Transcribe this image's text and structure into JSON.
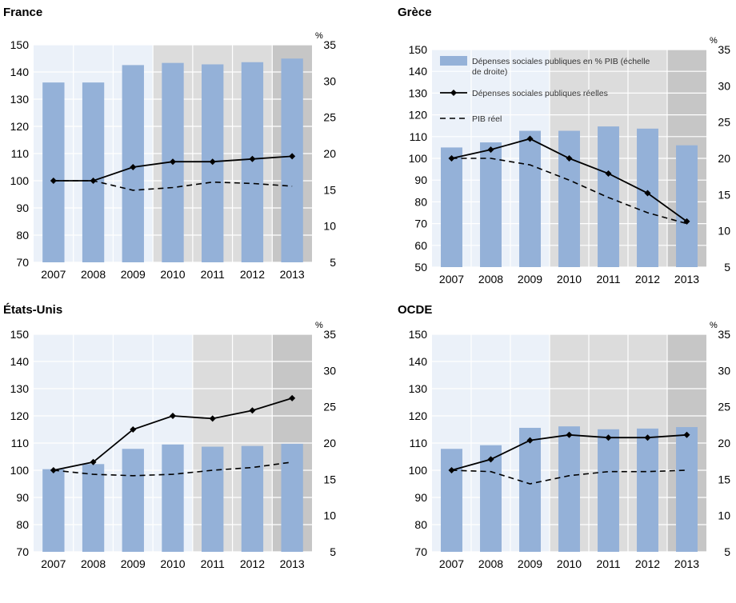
{
  "colors": {
    "bar": "#94b1d8",
    "panel_light": "#ebf1f9",
    "panel_mid": "#dcdcdc",
    "panel_dark": "#c6c6c6",
    "line": "#000000",
    "grid": "#ffffff"
  },
  "chart_data": [
    {
      "type": "bar",
      "title": "France",
      "categories": [
        "2007",
        "2008",
        "2009",
        "2010",
        "2011",
        "2012",
        "2013"
      ],
      "right_axis_unit": "%",
      "left_ylim": [
        70,
        150
      ],
      "left_ticks": [
        70,
        80,
        90,
        100,
        110,
        120,
        130,
        140,
        150
      ],
      "right_ylim": [
        5,
        35
      ],
      "right_ticks": [
        5,
        10,
        15,
        20,
        25,
        30,
        35
      ],
      "series": [
        {
          "kind": "bar",
          "axis": "right",
          "values": [
            29.8,
            29.8,
            32.2,
            32.5,
            32.3,
            32.6,
            33.1
          ]
        },
        {
          "kind": "line",
          "axis": "left",
          "values": [
            100,
            100,
            105,
            107,
            107,
            108,
            109
          ]
        },
        {
          "kind": "dashed",
          "axis": "left",
          "values": [
            100,
            100,
            96.5,
            97.5,
            99.5,
            99,
            98
          ]
        }
      ],
      "shade": [
        "light",
        "light",
        "light",
        "mid",
        "mid",
        "mid",
        "dark"
      ],
      "legend": null
    },
    {
      "type": "bar",
      "title": "Grèce",
      "categories": [
        "2007",
        "2008",
        "2009",
        "2010",
        "2011",
        "2012",
        "2013"
      ],
      "right_axis_unit": "%",
      "left_ylim": [
        50,
        150
      ],
      "left_ticks": [
        50,
        60,
        70,
        80,
        90,
        100,
        110,
        120,
        130,
        140,
        150
      ],
      "right_ylim": [
        5,
        35
      ],
      "right_ticks": [
        5,
        10,
        15,
        20,
        25,
        30,
        35
      ],
      "series": [
        {
          "kind": "bar",
          "axis": "right",
          "name": "Dépenses sociales publiques en % PIB (échelle de droite)",
          "values": [
            21.5,
            22.2,
            23.8,
            23.8,
            24.4,
            24.1,
            21.8
          ]
        },
        {
          "kind": "line",
          "axis": "left",
          "name": "Dépenses sociales publiques réelles",
          "values": [
            100,
            104,
            109,
            100,
            93,
            84,
            71
          ]
        },
        {
          "kind": "dashed",
          "axis": "left",
          "name": "PIB réel",
          "values": [
            100,
            100,
            97,
            90,
            82,
            75,
            70
          ]
        }
      ],
      "shade": [
        "light",
        "light",
        "light",
        "mid",
        "mid",
        "mid",
        "dark"
      ],
      "legend": "top-left"
    },
    {
      "type": "bar",
      "title": "États-Unis",
      "categories": [
        "2007",
        "2008",
        "2009",
        "2010",
        "2011",
        "2012",
        "2013"
      ],
      "right_axis_unit": "%",
      "left_ylim": [
        70,
        150
      ],
      "left_ticks": [
        70,
        80,
        90,
        100,
        110,
        120,
        130,
        140,
        150
      ],
      "right_ylim": [
        5,
        35
      ],
      "right_ticks": [
        5,
        10,
        15,
        20,
        25,
        30,
        35
      ],
      "series": [
        {
          "kind": "bar",
          "axis": "right",
          "values": [
            16.4,
            17.1,
            19.2,
            19.8,
            19.5,
            19.6,
            19.9
          ]
        },
        {
          "kind": "line",
          "axis": "left",
          "values": [
            100,
            103,
            115,
            120,
            119,
            122,
            126.5
          ]
        },
        {
          "kind": "dashed",
          "axis": "left",
          "values": [
            100,
            98.5,
            98,
            98.5,
            100,
            101,
            103
          ]
        }
      ],
      "shade": [
        "light",
        "light",
        "light",
        "light",
        "mid",
        "mid",
        "dark"
      ],
      "legend": null
    },
    {
      "type": "bar",
      "title": "OCDE",
      "categories": [
        "2007",
        "2008",
        "2009",
        "2010",
        "2011",
        "2012",
        "2013"
      ],
      "right_axis_unit": "%",
      "left_ylim": [
        70,
        150
      ],
      "left_ticks": [
        70,
        80,
        90,
        100,
        110,
        120,
        130,
        140,
        150
      ],
      "right_ylim": [
        5,
        35
      ],
      "right_ticks": [
        5,
        10,
        15,
        20,
        25,
        30,
        35
      ],
      "series": [
        {
          "kind": "bar",
          "axis": "right",
          "values": [
            19.2,
            19.7,
            22.1,
            22.3,
            21.9,
            22.0,
            22.2
          ]
        },
        {
          "kind": "line",
          "axis": "left",
          "values": [
            100,
            104,
            111,
            113,
            112,
            112,
            113
          ]
        },
        {
          "kind": "dashed",
          "axis": "left",
          "values": [
            100,
            99.5,
            95,
            98,
            99.5,
            99.5,
            100
          ]
        }
      ],
      "shade": [
        "light",
        "light",
        "light",
        "mid",
        "mid",
        "mid",
        "dark"
      ],
      "legend": null
    }
  ]
}
